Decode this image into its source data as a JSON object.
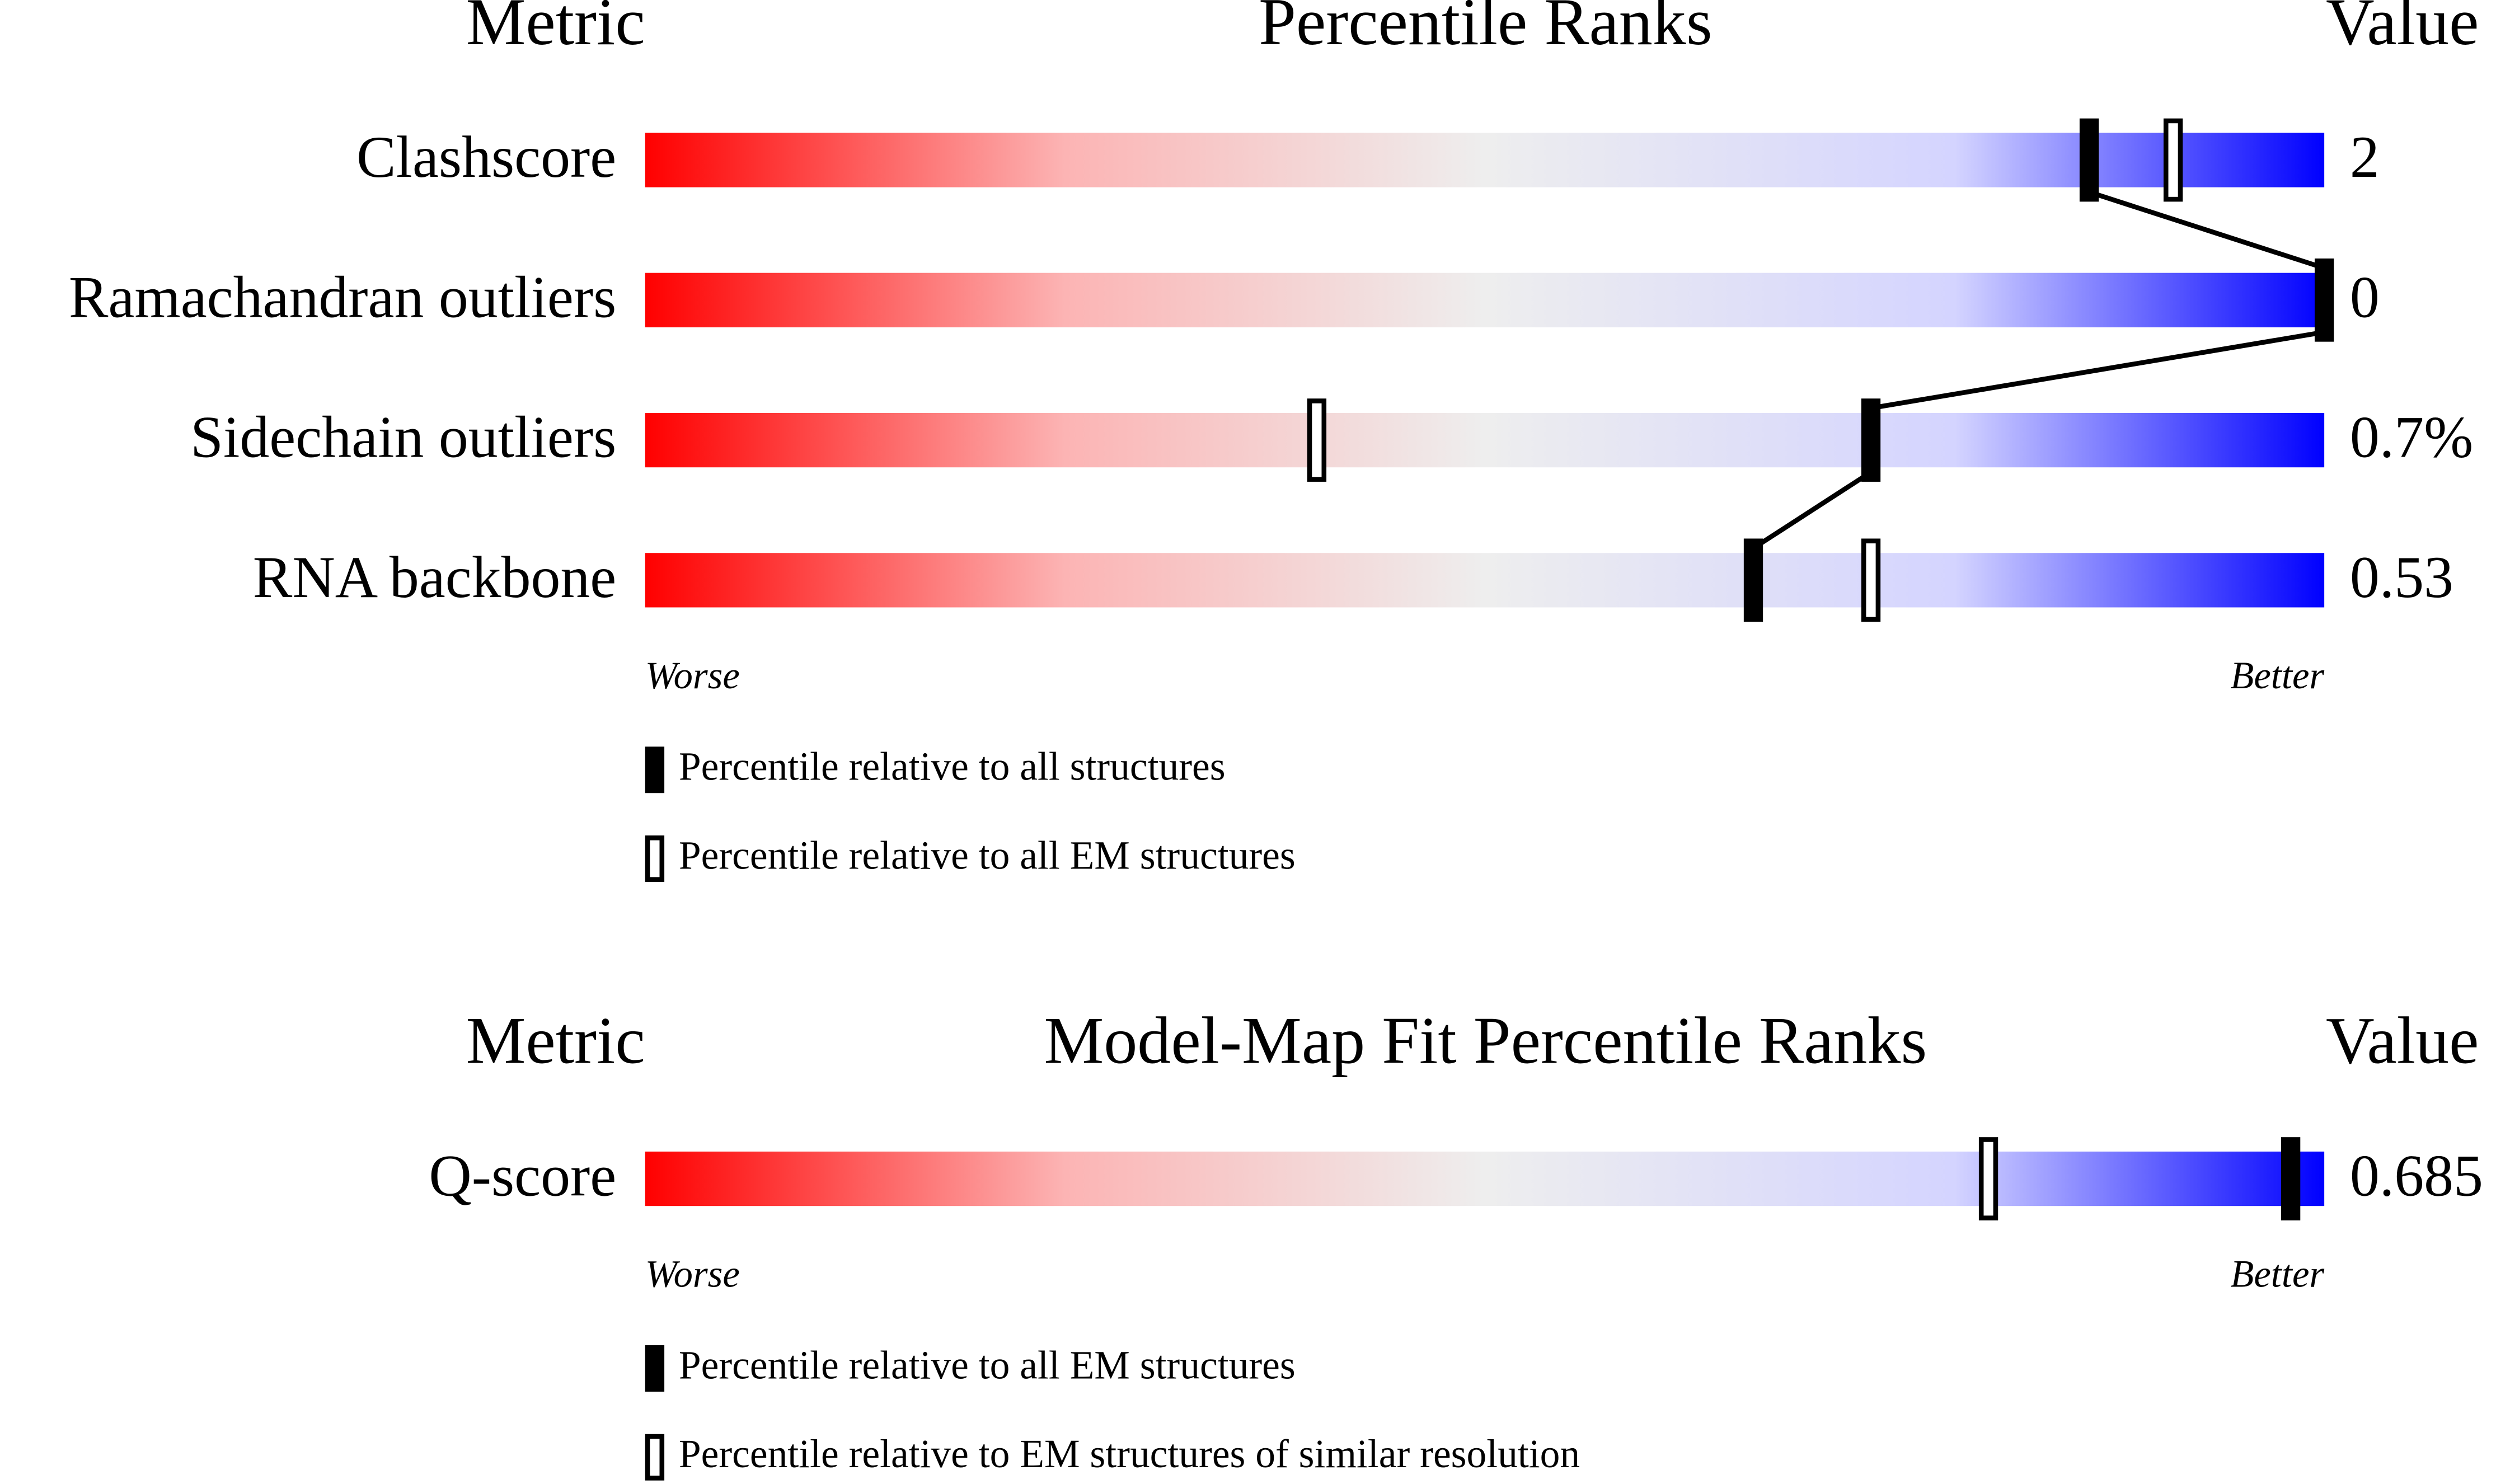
{
  "chart_data": [
    {
      "type": "percentile-slider",
      "title": "Percentile Ranks",
      "metric_header": "Metric",
      "value_header": "Value",
      "categories": [
        "Clashscore",
        "Ramachandran outliers",
        "Sidechain outliers",
        "RNA backbone"
      ],
      "values": [
        2,
        0,
        0.7,
        0.53
      ],
      "value_labels": [
        "2",
        "0",
        "0.7%",
        "0.53"
      ],
      "xlim": [
        0,
        100
      ],
      "worse_label": "Worse",
      "better_label": "Better",
      "series": [
        {
          "name": "Percentile relative to all structures",
          "marker": "filled",
          "connected": true,
          "values": [
            86,
            100,
            73,
            66
          ]
        },
        {
          "name": "Percentile relative to all EM structures",
          "marker": "open",
          "connected": false,
          "values": [
            91,
            null,
            40,
            73
          ]
        }
      ]
    },
    {
      "type": "percentile-slider",
      "title": "Model-Map Fit Percentile Ranks",
      "metric_header": "Metric",
      "value_header": "Value",
      "categories": [
        "Q-score"
      ],
      "values": [
        0.685
      ],
      "value_labels": [
        "0.685"
      ],
      "xlim": [
        0,
        100
      ],
      "worse_label": "Worse",
      "better_label": "Better",
      "series": [
        {
          "name": "Percentile relative to all EM structures",
          "marker": "filled",
          "connected": true,
          "values": [
            98
          ]
        },
        {
          "name": "Percentile relative to EM structures of similar resolution",
          "marker": "open",
          "connected": false,
          "values": [
            80
          ]
        }
      ]
    }
  ]
}
